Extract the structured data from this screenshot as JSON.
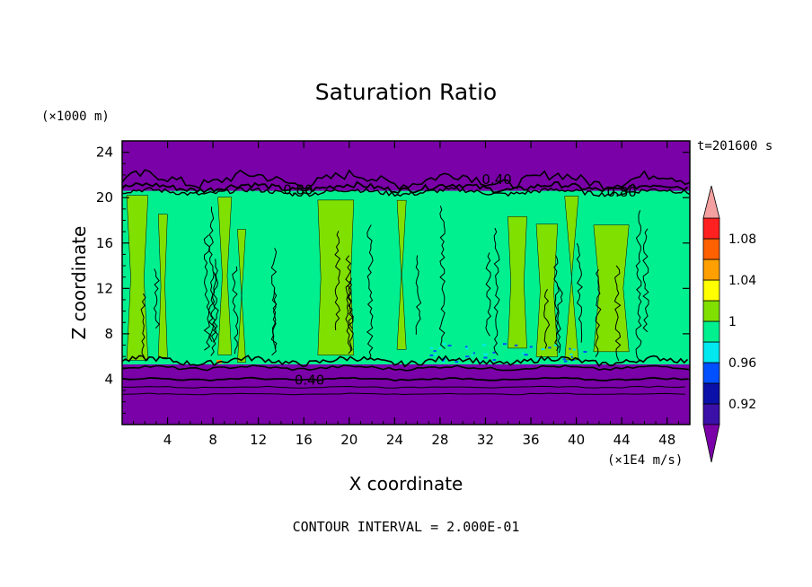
{
  "chart_data": {
    "type": "heatmap",
    "title": "Saturation Ratio",
    "xlabel": "X coordinate",
    "ylabel": "Z coordinate",
    "x_unit": "(×1E4 m/s)",
    "y_unit": "(×1000 m)",
    "time_label": "t=201600 s",
    "footer": "CONTOUR INTERVAL = 2.000E-01",
    "xlim": [
      0,
      50
    ],
    "ylim": [
      0,
      25
    ],
    "x_ticks": [
      4,
      8,
      12,
      16,
      20,
      24,
      28,
      32,
      36,
      40,
      44,
      48
    ],
    "y_ticks": [
      4,
      8,
      12,
      16,
      20,
      24
    ],
    "contour_labels": [
      {
        "text": "0.40",
        "x": 33,
        "z": 21.6
      },
      {
        "text": "0.80",
        "x": 15.5,
        "z": 20.7
      },
      {
        "text": "0.80",
        "x": 44,
        "z": 20.5
      },
      {
        "text": "0.40",
        "x": 16.5,
        "z": 3.9
      }
    ],
    "colorbar": {
      "levels": [
        {
          "color": "#7a00a8"
        },
        {
          "color": "#3a10a8"
        },
        {
          "color": "#0a10a8"
        },
        {
          "color": "#0050ff"
        },
        {
          "color": "#00e8f0"
        },
        {
          "color": "#00f090"
        },
        {
          "color": "#80e000"
        },
        {
          "color": "#ffff00"
        },
        {
          "color": "#ffa000"
        },
        {
          "color": "#ff6000"
        },
        {
          "color": "#ff2020"
        },
        {
          "color": "#f4a0a0"
        }
      ],
      "tick_labels": [
        "1.08",
        "1.04",
        "1",
        "0.96",
        "0.92"
      ]
    }
  },
  "colors": {
    "dry_layer": "#7a00a8",
    "green_cloud": "#00f090",
    "yellowgreen_cloud": "#80e000",
    "contour": "#000000"
  }
}
